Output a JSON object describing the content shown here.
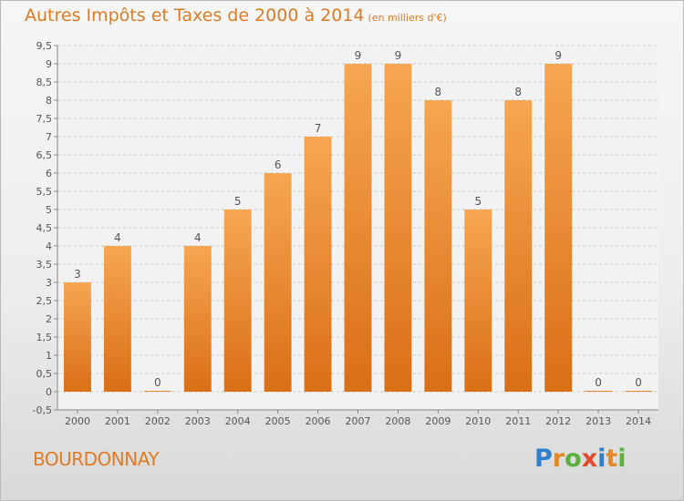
{
  "header": {
    "title": "Autres Impôts et Taxes de 2000 à 2014",
    "subtitle": "(en milliers d'€)"
  },
  "footer": {
    "commune": "BOURDONNAY",
    "logo_letters": [
      "P",
      "r",
      "o",
      "x",
      "i",
      "t",
      "i"
    ],
    "logo_colors": [
      "#2f7fcf",
      "#e3892a",
      "#5ab23c",
      "#e44a2a",
      "#2f7fcf",
      "#e3892a",
      "#5ab23c"
    ]
  },
  "colors": {
    "bar_top": "#f7a651",
    "bar_bottom": "#d96f16",
    "grid": "#c8c8c8",
    "axis": "#888888"
  },
  "chart_data": {
    "type": "bar",
    "title": "Autres Impôts et Taxes de 2000 à 2014",
    "subtitle": "(en milliers d'€)",
    "categories": [
      "2000",
      "2001",
      "2002",
      "2003",
      "2004",
      "2005",
      "2006",
      "2007",
      "2008",
      "2009",
      "2010",
      "2011",
      "2012",
      "2013",
      "2014"
    ],
    "values": [
      3,
      4,
      0,
      4,
      5,
      6,
      7,
      9,
      9,
      8,
      5,
      8,
      9,
      0,
      0
    ],
    "data_labels": [
      "3",
      "4",
      "0",
      "4",
      "5",
      "6",
      "7",
      "9",
      "9",
      "8",
      "5",
      "8",
      "9",
      "0",
      "0"
    ],
    "yticks": [
      "-0,5",
      "0",
      "0,5",
      "1",
      "1,5",
      "2",
      "2,5",
      "3",
      "3,5",
      "4",
      "4,5",
      "5",
      "5,5",
      "6",
      "6,5",
      "7",
      "7,5",
      "8",
      "8,5",
      "9",
      "9,5"
    ],
    "ylim": [
      -0.5,
      9.5
    ],
    "grid": true,
    "legend": "none"
  }
}
